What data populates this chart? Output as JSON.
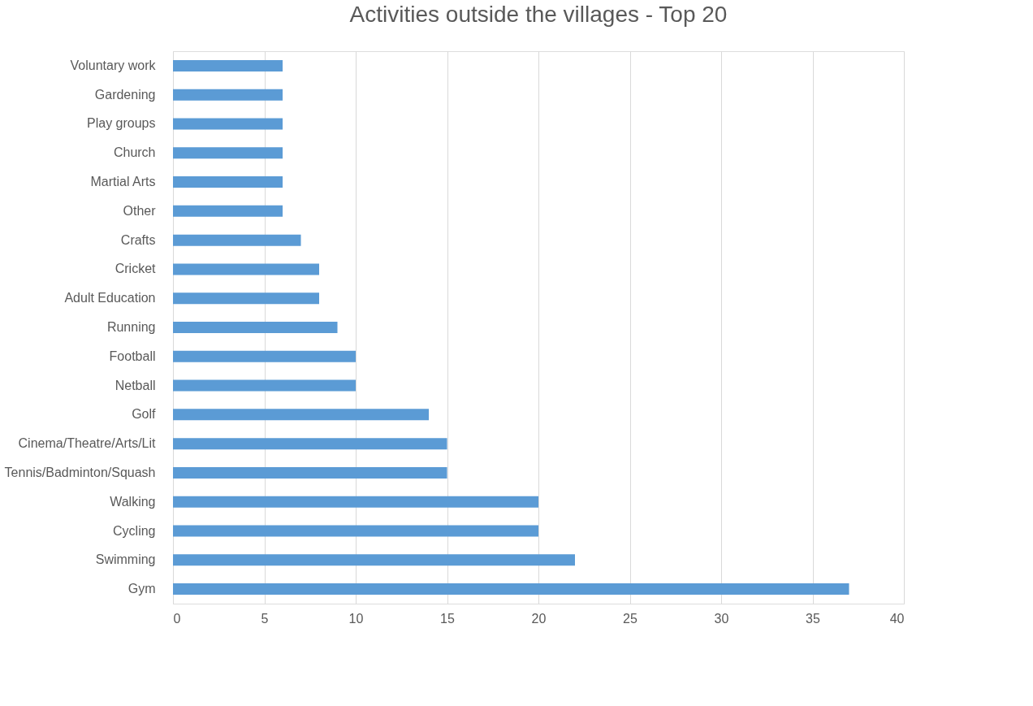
{
  "chart_data": {
    "type": "bar",
    "orientation": "horizontal",
    "title": "Activities outside the villages - Top 20",
    "categories": [
      "Voluntary work",
      "Gardening",
      "Play groups",
      "Church",
      "Martial Arts",
      "Other",
      "Crafts",
      "Cricket",
      "Adult Education",
      "Running",
      "Football",
      "Netball",
      "Golf",
      "Cinema/Theatre/Arts/Lit",
      "Tennis/Badminton/Squash",
      "Walking",
      "Cycling",
      "Swimming",
      "Gym"
    ],
    "values": [
      6,
      6,
      6,
      6,
      6,
      6,
      7,
      8,
      8,
      9,
      10,
      10,
      14,
      15,
      15,
      20,
      20,
      22,
      37
    ],
    "color": "#5b9bd5",
    "xlim": [
      0,
      40
    ],
    "xticks": [
      0,
      5,
      10,
      15,
      20,
      25,
      30,
      35,
      40
    ],
    "grid": "x"
  }
}
